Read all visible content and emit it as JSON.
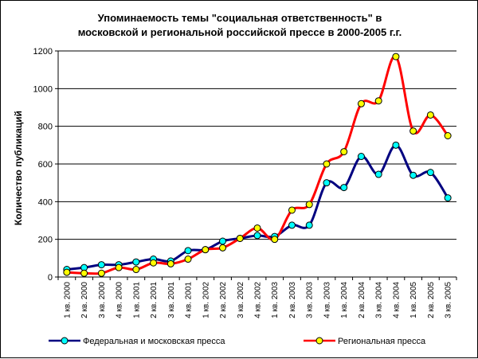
{
  "chart_data": {
    "type": "line",
    "title_line1": "Упоминаемость темы \"социальная ответственность\" в",
    "title_line2": "московской и региональной российской прессе в 2000-2005 г.г.",
    "xlabel": "",
    "ylabel": "Количество публикаций",
    "ylim": [
      0,
      1200
    ],
    "yticks": [
      0,
      200,
      400,
      600,
      800,
      1000,
      1200
    ],
    "grid": true,
    "legend_position": "bottom",
    "background_color": "#ffffff",
    "plot_background_color": "#ffffff",
    "grid_color": "#000000",
    "categories": [
      "1 кв. 2000",
      "2 кв. 2000",
      "3 кв. 2000",
      "4 кв. 2000",
      "1 кв. 2001",
      "2 кв. 2001",
      "3 кв. 2001",
      "4 кв. 2001",
      "1 кв. 2002",
      "2 кв. 2002",
      "3 кв. 2002",
      "4 кв. 2002",
      "1 кв. 2003",
      "2 кв. 2003",
      "3 кв. 2003",
      "4 кв. 2003",
      "1 кв. 2004",
      "2 кв. 2004",
      "3 кв. 2004",
      "4 кв. 2004",
      "1 кв. 2005",
      "2 кв. 2005",
      "3 кв. 2005"
    ],
    "series": [
      {
        "name": "Федеральная и московская пресса",
        "color": "#000080",
        "marker_color": "#00ffff",
        "values": [
          40,
          50,
          65,
          65,
          80,
          95,
          85,
          140,
          145,
          190,
          205,
          220,
          215,
          275,
          275,
          500,
          475,
          640,
          545,
          700,
          540,
          555,
          420
        ]
      },
      {
        "name": "Региональная пресса",
        "color": "#ff0000",
        "marker_color": "#ffff00",
        "values": [
          25,
          20,
          20,
          50,
          40,
          75,
          70,
          95,
          145,
          155,
          205,
          260,
          200,
          355,
          385,
          600,
          665,
          920,
          935,
          1170,
          775,
          860,
          750
        ]
      }
    ]
  }
}
